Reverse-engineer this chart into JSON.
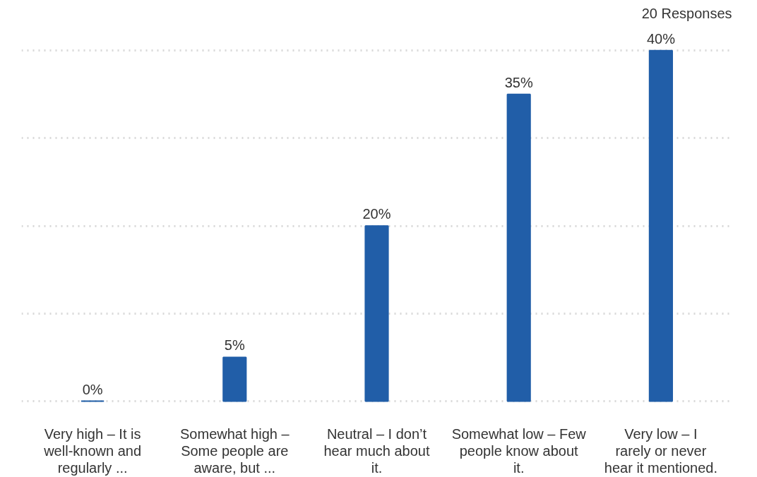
{
  "chart_data": {
    "type": "bar",
    "annotations": [
      "20 Responses"
    ],
    "categories": [
      "Very high – It is well-known and regularly ...",
      "Somewhat high – Some people are aware, but ...",
      "Neutral – I don’t hear much about it.",
      "Somewhat low – Few people know about it.",
      "Very low – I rarely or never hear it mentioned."
    ],
    "values": [
      0,
      5,
      20,
      35,
      40
    ],
    "color": "#215ea8",
    "data_labels": true,
    "value_labels": [
      "0%",
      "5%",
      "20%",
      "35%",
      "40%"
    ],
    "yticks": [
      {
        "value": 0,
        "label": null
      },
      {
        "value": 10,
        "label": null
      },
      {
        "value": 20,
        "label": null
      },
      {
        "value": 30,
        "label": null
      },
      {
        "value": 40,
        "label": null
      }
    ],
    "grid": "y",
    "tick_labels": "x"
  }
}
